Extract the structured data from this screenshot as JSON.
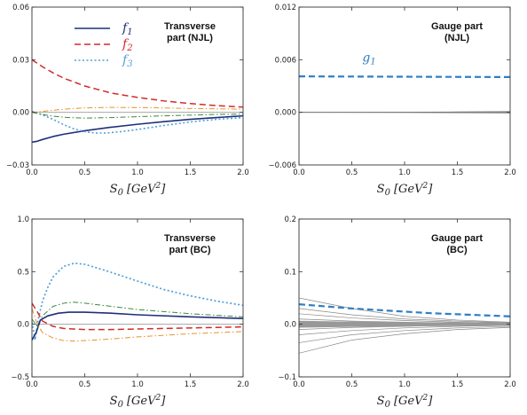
{
  "chart_data": [
    {
      "type": "line",
      "title": [
        "Transverse",
        "part (NJL)"
      ],
      "xlabel_main": "S",
      "xlabel_sub": "0",
      "xlabel_unit": "[GeV",
      "xlabel_sup": "2",
      "xlabel_close": "]",
      "xlim": [
        0,
        2.0
      ],
      "ylim": [
        -0.03,
        0.06
      ],
      "xticks": [
        0.0,
        0.5,
        1.0,
        1.5,
        2.0
      ],
      "xtick_labels": [
        "0.0",
        "0.5",
        "1.0",
        "1.5",
        "2.0"
      ],
      "yticks": [
        -0.03,
        0.0,
        0.03,
        0.06
      ],
      "ytick_labels": [
        "−0.03",
        "0.00",
        "0.03",
        "0.06"
      ],
      "legend": {
        "position": "top-left",
        "entries": [
          {
            "main": "f",
            "sub": "1",
            "color": "#1f2f7a"
          },
          {
            "main": "f",
            "sub": "2",
            "color": "#d42a2a"
          },
          {
            "main": "f",
            "sub": "3",
            "color": "#4f9fd8"
          }
        ]
      },
      "series": [
        {
          "color": "#1f2f7a",
          "dash": "solid",
          "width": 1.6,
          "x": [
            0,
            0.05,
            0.1,
            0.2,
            0.3,
            0.5,
            0.75,
            1.0,
            1.25,
            1.5,
            1.75,
            2.0
          ],
          "y": [
            -0.017,
            -0.0165,
            -0.0155,
            -0.0138,
            -0.0125,
            -0.0105,
            -0.0085,
            -0.0068,
            -0.0053,
            -0.004,
            -0.003,
            -0.002
          ]
        },
        {
          "color": "#d42a2a",
          "dash": "dash",
          "width": 1.5,
          "x": [
            0,
            0.1,
            0.2,
            0.3,
            0.5,
            0.75,
            1.0,
            1.25,
            1.5,
            1.75,
            2.0
          ],
          "y": [
            0.03,
            0.026,
            0.0225,
            0.0195,
            0.015,
            0.011,
            0.0085,
            0.0065,
            0.005,
            0.0038,
            0.003
          ]
        },
        {
          "color": "#4f9fd8",
          "dash": "dot",
          "width": 1.6,
          "x": [
            0,
            0.1,
            0.2,
            0.3,
            0.4,
            0.5,
            0.6,
            0.7,
            0.85,
            1.0,
            1.25,
            1.5,
            1.75,
            2.0
          ],
          "y": [
            0.0005,
            -0.0015,
            -0.004,
            -0.007,
            -0.0095,
            -0.011,
            -0.0118,
            -0.0118,
            -0.011,
            -0.0098,
            -0.0075,
            -0.0055,
            -0.004,
            -0.003
          ]
        },
        {
          "color": "#e8922a",
          "dash": "dashdot",
          "width": 1.0,
          "x": [
            0,
            0.1,
            0.2,
            0.35,
            0.5,
            0.75,
            1.0,
            1.25,
            1.5,
            1.75,
            2.0
          ],
          "y": [
            0.0,
            0.0005,
            0.0012,
            0.002,
            0.0025,
            0.0028,
            0.0027,
            0.0025,
            0.0022,
            0.002,
            0.0018
          ]
        },
        {
          "color": "#3a8a3a",
          "dash": "dashdot",
          "width": 1.0,
          "x": [
            0,
            0.1,
            0.2,
            0.35,
            0.5,
            0.75,
            1.0,
            1.25,
            1.5,
            1.75,
            2.0
          ],
          "y": [
            0.0,
            -0.0012,
            -0.0022,
            -0.003,
            -0.0033,
            -0.003,
            -0.0025,
            -0.002,
            -0.0016,
            -0.0012,
            -0.001
          ]
        }
      ]
    },
    {
      "type": "line",
      "title": [
        "Gauge part",
        "(NJL)"
      ],
      "xlabel_main": "S",
      "xlabel_sub": "0",
      "xlabel_unit": "[GeV",
      "xlabel_sup": "2",
      "xlabel_close": "]",
      "xlim": [
        0,
        2.0
      ],
      "ylim": [
        -0.006,
        0.012
      ],
      "xticks": [
        0.0,
        0.5,
        1.0,
        1.5,
        2.0
      ],
      "xtick_labels": [
        "0.0",
        "0.5",
        "1.0",
        "1.5",
        "2.0"
      ],
      "yticks": [
        -0.006,
        0.0,
        0.006,
        0.012
      ],
      "ytick_labels": [
        "−0.006",
        "0.000",
        "0.006",
        "0.012"
      ],
      "annotation": {
        "main": "g",
        "sub": "1",
        "color": "#2f7fc4"
      },
      "series": [
        {
          "color": "#2f7fc4",
          "dash": "dash",
          "width": 2.2,
          "x": [
            0,
            0.5,
            1.0,
            1.5,
            2.0
          ],
          "y": [
            0.0041,
            0.00408,
            0.00406,
            0.00404,
            0.00402
          ]
        },
        {
          "color": "#777777",
          "dash": "solid",
          "width": 0.8,
          "x": [
            0,
            1.0,
            2.0
          ],
          "y": [
            0.0,
            0.0,
            0.0
          ]
        },
        {
          "color": "#777777",
          "dash": "solid",
          "width": 0.6,
          "x": [
            0,
            1.0,
            1.5,
            2.0
          ],
          "y": [
            0.0,
            2e-05,
            6e-05,
            0.0001
          ]
        },
        {
          "color": "#777777",
          "dash": "solid",
          "width": 0.6,
          "x": [
            0,
            1.0,
            1.5,
            2.0
          ],
          "y": [
            0.0,
            -2e-05,
            -6e-05,
            -0.0001
          ]
        }
      ]
    },
    {
      "type": "line",
      "title": [
        "Transverse",
        "part (BC)"
      ],
      "xlabel_main": "S",
      "xlabel_sub": "0",
      "xlabel_unit": "[GeV",
      "xlabel_sup": "2",
      "xlabel_close": "]",
      "xlim": [
        0,
        2.0
      ],
      "ylim": [
        -0.5,
        1.0
      ],
      "xticks": [
        0.0,
        0.5,
        1.0,
        1.5,
        2.0
      ],
      "xtick_labels": [
        "0.0",
        "0.5",
        "1.0",
        "1.5",
        "2.0"
      ],
      "yticks": [
        -0.5,
        0.0,
        0.5,
        1.0
      ],
      "ytick_labels": [
        "−0.5",
        "0.0",
        "0.5",
        "1.0"
      ],
      "series": [
        {
          "color": "#4f9fd8",
          "dash": "dot",
          "width": 1.7,
          "x": [
            0,
            0.03,
            0.06,
            0.1,
            0.15,
            0.2,
            0.3,
            0.4,
            0.5,
            0.7,
            1.0,
            1.25,
            1.5,
            1.75,
            2.0
          ],
          "y": [
            0.02,
            -0.15,
            0.05,
            0.22,
            0.35,
            0.45,
            0.55,
            0.58,
            0.57,
            0.51,
            0.41,
            0.33,
            0.27,
            0.22,
            0.18
          ]
        },
        {
          "color": "#3a8a3a",
          "dash": "dashdot",
          "width": 1.0,
          "x": [
            0,
            0.05,
            0.1,
            0.2,
            0.3,
            0.4,
            0.5,
            0.75,
            1.0,
            1.5,
            2.0
          ],
          "y": [
            0.05,
            -0.02,
            0.08,
            0.17,
            0.2,
            0.21,
            0.2,
            0.17,
            0.14,
            0.1,
            0.07
          ]
        },
        {
          "color": "#1f2f7a",
          "dash": "solid",
          "width": 1.6,
          "x": [
            0,
            0.04,
            0.08,
            0.15,
            0.25,
            0.35,
            0.5,
            0.75,
            1.0,
            1.5,
            2.0
          ],
          "y": [
            -0.15,
            -0.08,
            0.04,
            0.08,
            0.105,
            0.115,
            0.115,
            0.105,
            0.09,
            0.07,
            0.055
          ]
        },
        {
          "color": "#d42a2a",
          "dash": "dash",
          "width": 1.5,
          "x": [
            0,
            0.05,
            0.1,
            0.2,
            0.3,
            0.5,
            0.75,
            1.0,
            1.25,
            1.5,
            1.75,
            2.0
          ],
          "y": [
            0.2,
            0.12,
            0.03,
            -0.02,
            -0.04,
            -0.05,
            -0.05,
            -0.045,
            -0.04,
            -0.035,
            -0.03,
            -0.025
          ]
        },
        {
          "color": "#e8922a",
          "dash": "dashdot",
          "width": 1.0,
          "x": [
            0,
            0.05,
            0.1,
            0.2,
            0.3,
            0.4,
            0.5,
            0.75,
            1.0,
            1.5,
            2.0
          ],
          "y": [
            0.15,
            0.0,
            -0.08,
            -0.13,
            -0.155,
            -0.16,
            -0.155,
            -0.14,
            -0.12,
            -0.09,
            -0.07
          ]
        }
      ]
    },
    {
      "type": "line",
      "title": [
        "Gauge part",
        "(BC)"
      ],
      "xlabel_main": "S",
      "xlabel_sub": "0",
      "xlabel_unit": "[GeV",
      "xlabel_sup": "2",
      "xlabel_close": "]",
      "xlim": [
        0,
        2.0
      ],
      "ylim": [
        -0.1,
        0.2
      ],
      "xticks": [
        0.0,
        0.5,
        1.0,
        1.5,
        2.0
      ],
      "xtick_labels": [
        "0.0",
        "0.5",
        "1.0",
        "1.5",
        "2.0"
      ],
      "yticks": [
        -0.1,
        0.0,
        0.1,
        0.2
      ],
      "ytick_labels": [
        "−0.1",
        "0.0",
        "0.1",
        "0.2"
      ],
      "series": [
        {
          "color": "#888888",
          "dash": "solid",
          "width": 0.7,
          "x": [
            0,
            0.5,
            1.0,
            1.5,
            2.0
          ],
          "y": [
            0.05,
            0.03,
            0.015,
            0.008,
            0.004
          ]
        },
        {
          "color": "#888888",
          "dash": "solid",
          "width": 0.7,
          "x": [
            0,
            0.5,
            1.0,
            1.5,
            2.0
          ],
          "y": [
            0.03,
            0.018,
            0.01,
            0.006,
            0.003
          ]
        },
        {
          "color": "#888888",
          "dash": "solid",
          "width": 0.7,
          "x": [
            0,
            0.5,
            1.0,
            1.5,
            2.0
          ],
          "y": [
            0.02,
            0.012,
            0.007,
            0.004,
            0.002
          ]
        },
        {
          "color": "#888888",
          "dash": "solid",
          "width": 0.7,
          "x": [
            0,
            0.5,
            1.0,
            1.5,
            2.0
          ],
          "y": [
            0.01,
            0.006,
            0.004,
            0.002,
            0.001
          ]
        },
        {
          "color": "#888888",
          "dash": "solid",
          "width": 0.7,
          "x": [
            0,
            0.5,
            1.0,
            1.5,
            2.0
          ],
          "y": [
            0.005,
            0.003,
            0.002,
            0.001,
            0.0005
          ]
        },
        {
          "color": "#888888",
          "dash": "solid",
          "width": 0.7,
          "x": [
            0,
            0.5,
            1.0,
            1.5,
            2.0
          ],
          "y": [
            -0.005,
            -0.003,
            -0.002,
            -0.001,
            -0.0005
          ]
        },
        {
          "color": "#888888",
          "dash": "solid",
          "width": 0.7,
          "x": [
            0,
            0.5,
            1.0,
            1.5,
            2.0
          ],
          "y": [
            -0.01,
            -0.006,
            -0.004,
            -0.002,
            -0.001
          ]
        },
        {
          "color": "#888888",
          "dash": "solid",
          "width": 0.7,
          "x": [
            0,
            0.5,
            1.0,
            1.5,
            2.0
          ],
          "y": [
            -0.02,
            -0.012,
            -0.007,
            -0.004,
            -0.002
          ]
        },
        {
          "color": "#888888",
          "dash": "solid",
          "width": 0.7,
          "x": [
            0,
            0.5,
            1.0,
            1.5,
            2.0
          ],
          "y": [
            -0.035,
            -0.02,
            -0.012,
            -0.007,
            -0.004
          ]
        },
        {
          "color": "#888888",
          "dash": "solid",
          "width": 0.7,
          "x": [
            0,
            0.5,
            1.0,
            1.5,
            2.0
          ],
          "y": [
            -0.055,
            -0.03,
            -0.018,
            -0.01,
            -0.006
          ]
        },
        {
          "color": "#999999",
          "dash": "solid",
          "width": 3.0,
          "x": [
            0,
            0.5,
            1.0,
            1.5,
            2.0
          ],
          "y": [
            0.004,
            0.0025,
            0.0015,
            0.001,
            0.0005
          ]
        },
        {
          "color": "#999999",
          "dash": "solid",
          "width": 3.0,
          "x": [
            0,
            0.5,
            1.0,
            1.5,
            2.0
          ],
          "y": [
            -0.004,
            -0.0025,
            -0.0015,
            -0.001,
            -0.0005
          ]
        },
        {
          "color": "#999999",
          "dash": "solid",
          "width": 3.0,
          "x": [
            0,
            0.5,
            1.0,
            1.5,
            2.0
          ],
          "y": [
            0.0,
            0.0,
            0.0,
            0.0,
            0.0
          ]
        },
        {
          "color": "#2f7fc4",
          "dash": "dash",
          "width": 2.2,
          "x": [
            0,
            0.25,
            0.5,
            0.75,
            1.0,
            1.25,
            1.5,
            1.75,
            2.0
          ],
          "y": [
            0.038,
            0.034,
            0.03,
            0.027,
            0.024,
            0.021,
            0.019,
            0.017,
            0.015
          ]
        }
      ]
    }
  ]
}
